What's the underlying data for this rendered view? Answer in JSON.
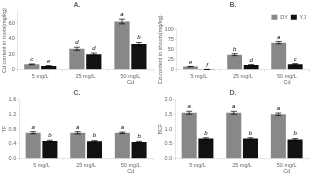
{
  "chart_data": [
    {
      "type": "bar",
      "title": "A.",
      "ylabel": "Cd content in roots(mg/kg)",
      "categories": [
        "5 mg/L",
        "25 mg/L",
        "50 mg/L\nCd"
      ],
      "series": [
        {
          "name": "DY",
          "color": "#888888",
          "values": [
            7,
            27,
            62
          ],
          "errors": [
            0.5,
            2,
            3
          ],
          "annotations": [
            "c",
            "d",
            "a"
          ]
        },
        {
          "name": "YJ",
          "color": "#111111",
          "values": [
            5,
            20,
            33
          ],
          "errors": [
            0.3,
            1.5,
            2
          ],
          "annotations": [
            "e",
            "d",
            "b"
          ]
        }
      ],
      "ylim": [
        0,
        75
      ],
      "yticks": [
        0,
        20,
        40,
        60
      ],
      "grid": false
    },
    {
      "type": "bar",
      "title": "B.",
      "ylabel": "Cd content in shoots(mg/kg)",
      "categories": [
        "5 mg/L",
        "25 mg/L",
        "50 mg/L\nCd"
      ],
      "series": [
        {
          "name": "DY",
          "color": "#888888",
          "values": [
            8,
            38,
            68
          ],
          "errors": [
            0.5,
            2.5,
            3
          ],
          "annotations": [
            "e",
            "b",
            "a"
          ]
        },
        {
          "name": "YJ",
          "color": "#111111",
          "values": [
            1,
            12,
            14
          ],
          "errors": [
            0.1,
            1,
            1.5
          ],
          "annotations": [
            "f",
            "d",
            "c"
          ]
        }
      ],
      "ylim": [
        0,
        100
      ],
      "yticks": [
        0,
        25,
        50,
        75,
        100
      ],
      "grid": false,
      "legend": "upper right"
    },
    {
      "type": "bar",
      "title": "C.",
      "ylabel": "TF",
      "categories": [
        "5 mg/L",
        "25 mg/L",
        "50 mg/L\nCd"
      ],
      "series": [
        {
          "name": "DY",
          "color": "#888888",
          "values": [
            0.7,
            0.7,
            0.7
          ],
          "errors": [
            0.03,
            0.03,
            0.02
          ],
          "annotations": [
            "a",
            "a",
            "a"
          ]
        },
        {
          "name": "YJ",
          "color": "#111111",
          "values": [
            0.48,
            0.47,
            0.45
          ],
          "errors": [
            0.02,
            0.02,
            0.02
          ],
          "annotations": [
            "b",
            "b",
            "b"
          ]
        }
      ],
      "ylim": [
        0,
        1.6
      ],
      "yticks": [
        {
          "value": 0,
          "label": "0.0"
        },
        0.4,
        0.8,
        1.2,
        1.6
      ],
      "grid": false
    },
    {
      "type": "bar",
      "title": "D.",
      "ylabel": "BCF",
      "categories": [
        "5 mg/L",
        "25 mg/L",
        "50 mg/L\nCd"
      ],
      "series": [
        {
          "name": "DY",
          "color": "#888888",
          "values": [
            1.55,
            1.55,
            1.5
          ],
          "errors": [
            0.05,
            0.05,
            0.04
          ],
          "annotations": [
            "a",
            "a",
            "a"
          ]
        },
        {
          "name": "YJ",
          "color": "#111111",
          "values": [
            0.68,
            0.68,
            0.65
          ],
          "errors": [
            0.03,
            0.03,
            0.03
          ],
          "annotations": [
            "b",
            "b",
            "b"
          ]
        }
      ],
      "ylim": [
        0,
        2.0
      ],
      "yticks": [
        {
          "value": 0,
          "label": "0.0"
        },
        0.5,
        {
          "value": 1,
          "label": "1.0"
        },
        1.5,
        {
          "value": 2,
          "label": "2.0"
        }
      ],
      "grid": false
    }
  ]
}
